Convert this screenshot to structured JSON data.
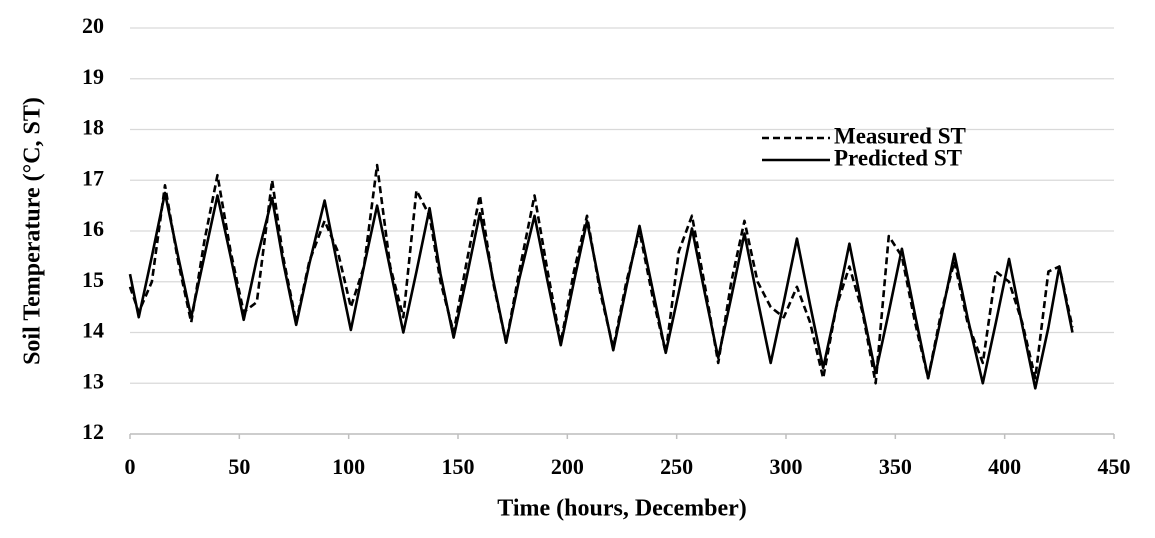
{
  "chart_data": {
    "type": "line",
    "x_label": "Time (hours, December)",
    "y_label": "Soil Temperature (°C, ST)",
    "x": [
      0,
      4,
      10,
      16,
      22,
      28,
      34,
      40,
      46,
      52,
      58,
      65,
      70,
      76,
      82,
      89,
      95,
      101,
      107,
      113,
      119,
      125,
      131,
      137,
      142,
      148,
      154,
      160,
      166,
      172,
      178,
      185,
      191,
      197,
      203,
      209,
      215,
      221,
      227,
      233,
      239,
      245,
      251,
      257,
      263,
      269,
      275,
      281,
      287,
      293,
      299,
      305,
      311,
      317,
      323,
      329,
      335,
      341,
      347,
      353,
      359,
      365,
      371,
      377,
      383,
      390,
      396,
      402,
      408,
      414,
      420,
      425,
      431
    ],
    "series": [
      {
        "name": "Measured ST",
        "color": "#000000",
        "dash": true,
        "values": [
          14.9,
          14.4,
          15.0,
          16.9,
          15.4,
          14.2,
          15.8,
          17.1,
          15.6,
          14.4,
          14.6,
          17.0,
          15.5,
          14.2,
          15.4,
          16.2,
          15.6,
          14.5,
          15.3,
          17.3,
          15.3,
          14.3,
          16.8,
          16.3,
          15.0,
          14.0,
          15.4,
          16.7,
          15.0,
          13.8,
          15.2,
          16.7,
          15.2,
          13.8,
          15.2,
          16.3,
          14.8,
          13.7,
          15.0,
          16.0,
          14.7,
          13.6,
          15.6,
          16.3,
          14.9,
          13.4,
          15.0,
          16.2,
          15.0,
          14.5,
          14.3,
          14.9,
          14.2,
          13.1,
          14.5,
          15.3,
          14.4,
          13.0,
          15.9,
          15.5,
          14.2,
          13.1,
          14.4,
          15.4,
          14.2,
          13.4,
          15.2,
          15.0,
          14.2,
          13.1,
          15.2,
          15.3,
          14.1
        ]
      },
      {
        "name": "Predicted ST",
        "color": "#000000",
        "dash": false,
        "values": [
          15.15,
          14.3,
          15.5,
          16.75,
          15.5,
          14.3,
          15.5,
          16.7,
          15.5,
          14.25,
          15.45,
          16.65,
          15.4,
          14.15,
          15.35,
          16.6,
          15.3,
          14.05,
          15.3,
          16.5,
          15.25,
          14.0,
          15.2,
          16.45,
          15.15,
          13.9,
          15.1,
          16.35,
          15.05,
          13.8,
          15.05,
          16.3,
          15.0,
          13.75,
          15.0,
          16.2,
          14.9,
          13.65,
          14.9,
          16.1,
          14.85,
          13.6,
          14.8,
          16.05,
          14.75,
          13.5,
          14.7,
          15.95,
          14.65,
          13.4,
          14.6,
          15.85,
          14.55,
          13.3,
          14.5,
          15.75,
          14.45,
          13.2,
          14.4,
          15.65,
          14.35,
          13.1,
          14.3,
          15.55,
          14.3,
          13.0,
          14.2,
          15.45,
          14.15,
          12.9,
          14.1,
          15.3,
          14.0
        ]
      }
    ],
    "xlim": [
      0,
      450
    ],
    "xticks": [
      0,
      50,
      100,
      150,
      200,
      250,
      300,
      350,
      400,
      450
    ],
    "ylim": [
      12,
      20
    ],
    "yticks": [
      12,
      13,
      14,
      15,
      16,
      17,
      18,
      19,
      20
    ],
    "grid": true,
    "legend": "upper-right"
  }
}
